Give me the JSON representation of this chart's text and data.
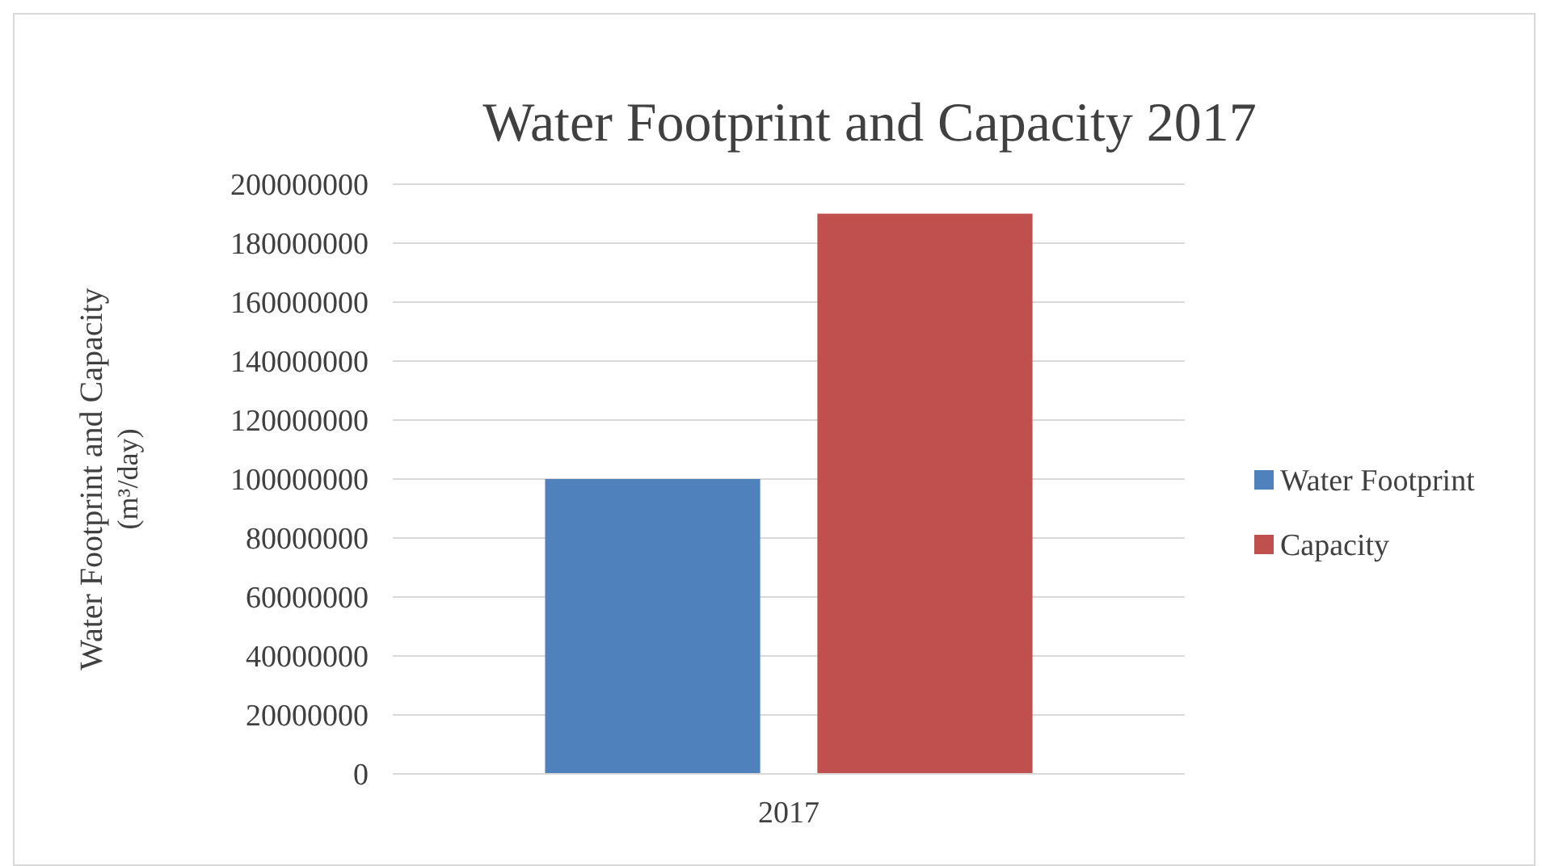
{
  "chart_data": {
    "type": "bar",
    "title": "Water Footprint and Capacity 2017",
    "ylabel": "Water Footprint and Capacity\n(m³/day)",
    "categories": [
      "2017"
    ],
    "series": [
      {
        "name": "Water Footprint",
        "color": "#4f81bd",
        "values": [
          100000000
        ]
      },
      {
        "name": "Capacity",
        "color": "#c0504d",
        "values": [
          190000000
        ]
      }
    ],
    "ylim": [
      0,
      200000000
    ],
    "yticks": [
      0,
      20000000,
      40000000,
      60000000,
      80000000,
      100000000,
      120000000,
      140000000,
      160000000,
      180000000,
      200000000
    ],
    "grid": "y",
    "legend": "right"
  }
}
